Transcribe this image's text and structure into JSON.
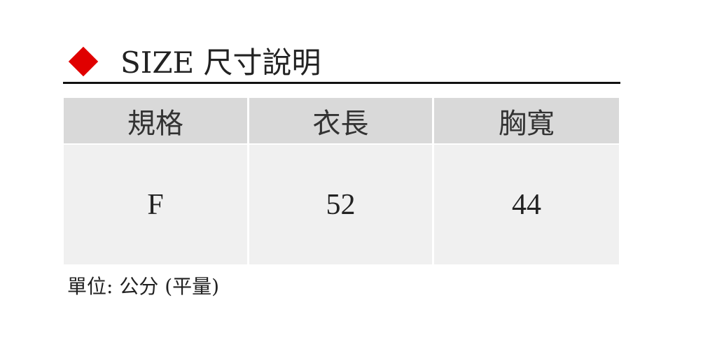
{
  "heading": {
    "icon": "red-diamond-icon",
    "accent": "#e00000",
    "text": "SIZE 尺寸說明"
  },
  "table": {
    "headers": [
      "規格",
      "衣長",
      "胸寬"
    ],
    "rows": [
      [
        "F",
        "52",
        "44"
      ]
    ]
  },
  "note": "單位: 公分 (平量)"
}
